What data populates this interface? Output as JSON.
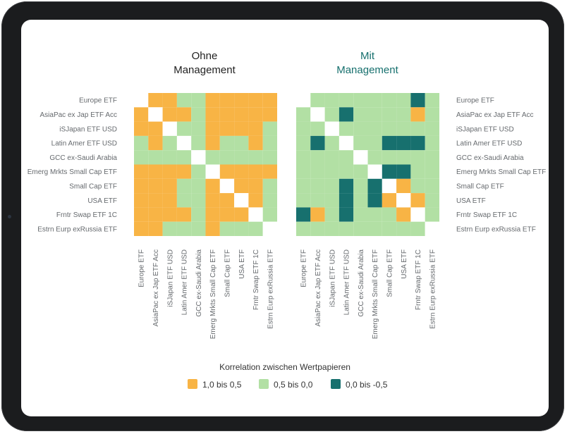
{
  "chart_data": [
    {
      "type": "heatmap",
      "title_lines": [
        "Ohne",
        "Management"
      ],
      "labels": [
        "Europe ETF",
        "AsiaPac ex Jap ETF Acc",
        "iSJapan ETF USD",
        "Latin Amer ETF USD",
        "GCC ex-Saudi Arabia",
        "Emerg Mrkts Small Cap ETF",
        "Small Cap ETF",
        "USA ETF",
        "Frntr Swap ETF 1C",
        "Estrn Eurp exRussia ETF"
      ],
      "matrix": [
        [
          "d",
          "o",
          "o",
          "g",
          "g",
          "o",
          "o",
          "o",
          "o",
          "o"
        ],
        [
          "o",
          "d",
          "o",
          "o",
          "g",
          "o",
          "o",
          "o",
          "o",
          "o"
        ],
        [
          "o",
          "o",
          "d",
          "g",
          "g",
          "o",
          "o",
          "o",
          "o",
          "g"
        ],
        [
          "g",
          "o",
          "g",
          "d",
          "g",
          "o",
          "g",
          "g",
          "o",
          "g"
        ],
        [
          "g",
          "g",
          "g",
          "g",
          "d",
          "g",
          "g",
          "g",
          "g",
          "g"
        ],
        [
          "o",
          "o",
          "o",
          "o",
          "g",
          "d",
          "o",
          "o",
          "o",
          "o"
        ],
        [
          "o",
          "o",
          "o",
          "g",
          "g",
          "o",
          "d",
          "o",
          "o",
          "g"
        ],
        [
          "o",
          "o",
          "o",
          "g",
          "g",
          "o",
          "o",
          "d",
          "o",
          "g"
        ],
        [
          "o",
          "o",
          "o",
          "o",
          "g",
          "o",
          "o",
          "o",
          "d",
          "g"
        ],
        [
          "o",
          "o",
          "g",
          "g",
          "g",
          "o",
          "g",
          "g",
          "g",
          "d"
        ]
      ]
    },
    {
      "type": "heatmap",
      "title_lines": [
        "Mit",
        "Management"
      ],
      "labels": [
        "Europe ETF",
        "AsiaPac ex Jap ETF Acc",
        "iSJapan ETF USD",
        "Latin Amer ETF USD",
        "GCC ex-Saudi Arabia",
        "Emerg Mrkts Small Cap ETF",
        "Small Cap ETF",
        "USA ETF",
        "Frntr Swap ETF 1C",
        "Estrn Eurp exRussia ETF"
      ],
      "matrix": [
        [
          "d",
          "g",
          "g",
          "g",
          "g",
          "g",
          "g",
          "g",
          "t",
          "g"
        ],
        [
          "g",
          "d",
          "g",
          "t",
          "g",
          "g",
          "g",
          "g",
          "o",
          "g"
        ],
        [
          "g",
          "g",
          "d",
          "g",
          "g",
          "g",
          "g",
          "g",
          "g",
          "g"
        ],
        [
          "g",
          "t",
          "g",
          "d",
          "g",
          "g",
          "t",
          "t",
          "t",
          "g"
        ],
        [
          "g",
          "g",
          "g",
          "g",
          "d",
          "g",
          "g",
          "g",
          "g",
          "g"
        ],
        [
          "g",
          "g",
          "g",
          "g",
          "g",
          "d",
          "t",
          "t",
          "g",
          "g"
        ],
        [
          "g",
          "g",
          "g",
          "t",
          "g",
          "t",
          "d",
          "o",
          "g",
          "g"
        ],
        [
          "g",
          "g",
          "g",
          "t",
          "g",
          "t",
          "o",
          "d",
          "o",
          "g"
        ],
        [
          "t",
          "o",
          "g",
          "t",
          "g",
          "g",
          "g",
          "o",
          "d",
          "g"
        ],
        [
          "g",
          "g",
          "g",
          "g",
          "g",
          "g",
          "g",
          "g",
          "g",
          "d"
        ]
      ]
    }
  ],
  "legend": {
    "title": "Korrelation zwischen Wertpapieren",
    "items": [
      {
        "key": "o",
        "label": "1,0 bis 0,5",
        "color": "#f8b445"
      },
      {
        "key": "g",
        "label": "0,5 bis 0,0",
        "color": "#b2e0a4"
      },
      {
        "key": "t",
        "label": "0,0 bis -0,5",
        "color": "#17706e"
      }
    ]
  },
  "colors": {
    "o": "#f8b445",
    "g": "#b2e0a4",
    "t": "#17706e",
    "d": "#ffffff"
  }
}
